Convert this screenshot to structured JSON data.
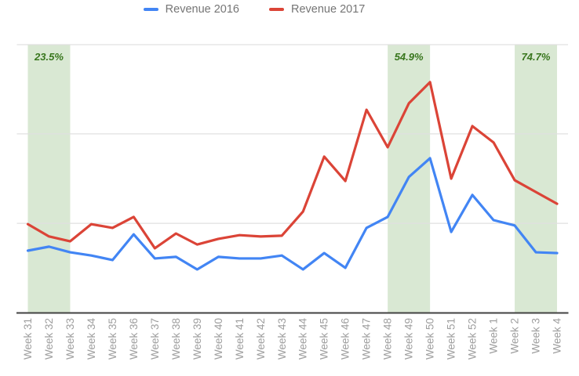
{
  "chart_data": {
    "type": "line",
    "title": "",
    "xlabel": "",
    "ylabel": "",
    "ylim": [
      0,
      100
    ],
    "y_axis_labels_visible": false,
    "legend_position": "top-center",
    "grid": true,
    "gridline_values": [
      33.3,
      66.7,
      100
    ],
    "categories": [
      "Week 31",
      "Week 32",
      "Week 33",
      "Week 34",
      "Week 35",
      "Week 36",
      "Week 37",
      "Week 38",
      "Week 39",
      "Week 40",
      "Week 41",
      "Week 42",
      "Week 43",
      "Week 44",
      "Week 45",
      "Week 46",
      "Week 47",
      "Week 48",
      "Week 49",
      "Week 50",
      "Week 51",
      "Week 52",
      "Week 1",
      "Week 2",
      "Week 3",
      "Week 4"
    ],
    "series": [
      {
        "name": "Revenue 2016",
        "color": "#4285f4",
        "values": [
          23.1,
          24.6,
          22.5,
          21.3,
          19.6,
          29.2,
          20.2,
          20.8,
          16.1,
          20.8,
          20.2,
          20.2,
          21.3,
          16.1,
          22.2,
          16.7,
          31.6,
          35.7,
          50.6,
          57.6,
          30.1,
          43.9,
          34.5,
          32.5,
          22.5,
          22.2
        ]
      },
      {
        "name": "Revenue 2017",
        "color": "#db4437",
        "values": [
          33.0,
          28.4,
          26.6,
          33.0,
          31.6,
          35.7,
          24.0,
          29.5,
          25.4,
          27.5,
          28.9,
          28.4,
          28.7,
          37.7,
          58.2,
          49.1,
          75.7,
          61.7,
          78.1,
          86.0,
          50.0,
          69.6,
          63.5,
          49.4,
          45.0,
          40.6
        ]
      }
    ],
    "highlight_bands": [
      {
        "from": "Week 31",
        "to": "Week 33",
        "label": "23.5%"
      },
      {
        "from": "Week 48",
        "to": "Week 50",
        "label": "54.9%"
      },
      {
        "from": "Week 2",
        "to": "Week 4",
        "label": "74.7%"
      }
    ],
    "band_color": "#d9e8d3",
    "band_label_color": "#38761d",
    "gridline_color": "#e0e0e0",
    "axis_color": "#424242",
    "x_label_color": "#9e9e9e"
  }
}
